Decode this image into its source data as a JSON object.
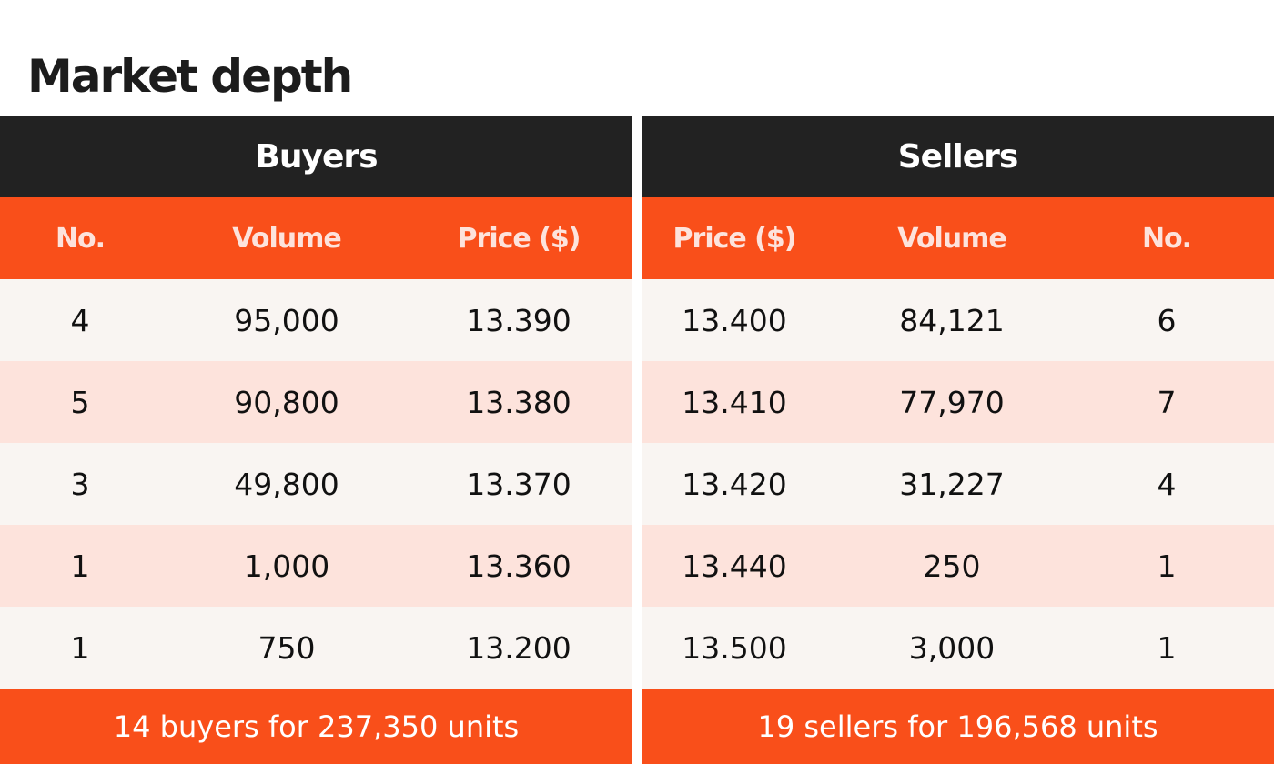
{
  "title": "Market depth",
  "buyers": {
    "title": "Buyers",
    "columns": [
      "No.",
      "Volume",
      "Price ($)"
    ],
    "rows": [
      [
        "4",
        "95,000",
        "13.390"
      ],
      [
        "5",
        "90,800",
        "13.380"
      ],
      [
        "3",
        "49,800",
        "13.370"
      ],
      [
        "1",
        "1,000",
        "13.360"
      ],
      [
        "1",
        "750",
        "13.200"
      ]
    ],
    "footer": "14 buyers for 237,350 units"
  },
  "sellers": {
    "title": "Sellers",
    "columns": [
      "Price ($)",
      "Volume",
      "No."
    ],
    "rows": [
      [
        "13.400",
        "84,121",
        "6"
      ],
      [
        "13.410",
        "77,970",
        "7"
      ],
      [
        "13.420",
        "31,227",
        "4"
      ],
      [
        "13.440",
        "250",
        "1"
      ],
      [
        "13.500",
        "3,000",
        "1"
      ]
    ],
    "footer": "19 sellers for 196,568 units"
  }
}
